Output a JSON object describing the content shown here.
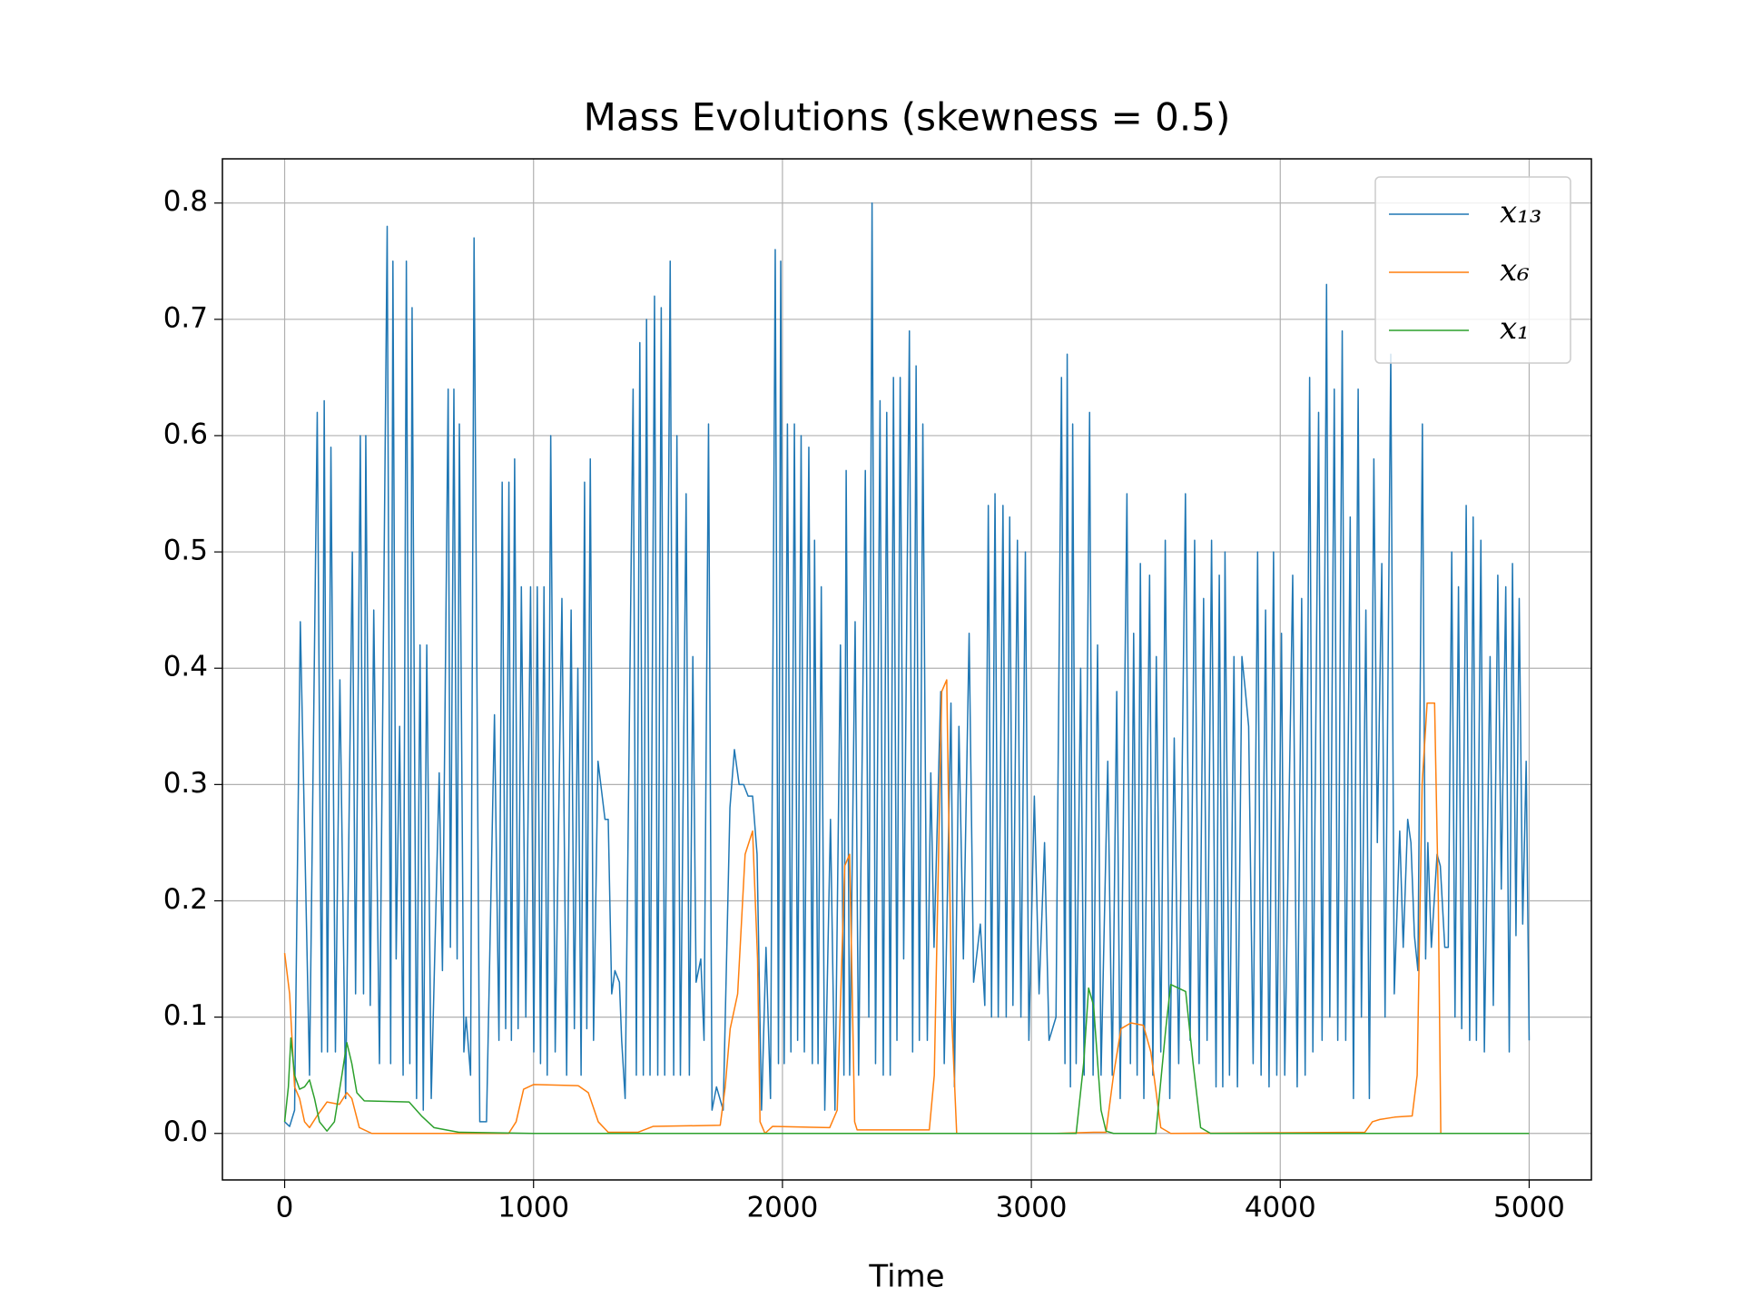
{
  "chart_data": {
    "type": "line",
    "title": "Mass Evolutions (skewness = 0.5)",
    "x_label": "Time",
    "xlim": [
      -250,
      5250
    ],
    "ylim": [
      -0.04,
      0.838
    ],
    "xticks": [
      0,
      1000,
      2000,
      3000,
      4000,
      5000
    ],
    "yticks": [
      {
        "value": 0,
        "label": "0.0"
      },
      0.1,
      0.2,
      0.3,
      0.4,
      0.5,
      0.6,
      0.7,
      0.8
    ],
    "grid": true,
    "legend": "upper right",
    "series": [
      {
        "name": "x₁₃",
        "color": "#1f77b4",
        "x": [
          0,
          20,
          40,
          63,
          100,
          131,
          149,
          159,
          172,
          186,
          204,
          222,
          245,
          272,
          285,
          304,
          317,
          326,
          344,
          358,
          381,
          412,
          426,
          435,
          448,
          462,
          476,
          489,
          503,
          512,
          530,
          544,
          557,
          571,
          589,
          621,
          634,
          657,
          666,
          680,
          693,
          702,
          720,
          729,
          747,
          761,
          784,
          811,
          843,
          861,
          874,
          888,
          901,
          911,
          924,
          938,
          951,
          969,
          988,
          1001,
          1015,
          1028,
          1042,
          1055,
          1069,
          1087,
          1114,
          1133,
          1151,
          1164,
          1178,
          1191,
          1205,
          1214,
          1228,
          1241,
          1259,
          1287,
          1300,
          1314,
          1327,
          1345,
          1354,
          1368,
          1400,
          1413,
          1427,
          1441,
          1454,
          1468,
          1486,
          1499,
          1513,
          1527,
          1549,
          1563,
          1576,
          1590,
          1613,
          1626,
          1640,
          1653,
          1672,
          1685,
          1703,
          1717,
          1735,
          1762,
          1789,
          1807,
          1826,
          1844,
          1862,
          1880,
          1898,
          1916,
          1934,
          1952,
          1971,
          1984,
          1993,
          2007,
          2020,
          2034,
          2048,
          2061,
          2075,
          2088,
          2106,
          2120,
          2129,
          2143,
          2156,
          2170,
          2193,
          2211,
          2233,
          2247,
          2256,
          2270,
          2292,
          2306,
          2333,
          2347,
          2360,
          2374,
          2392,
          2405,
          2419,
          2433,
          2446,
          2460,
          2473,
          2487,
          2510,
          2523,
          2537,
          2550,
          2564,
          2582,
          2596,
          2609,
          2636,
          2650,
          2677,
          2691,
          2709,
          2727,
          2750,
          2768,
          2795,
          2813,
          2827,
          2840,
          2854,
          2867,
          2886,
          2899,
          2913,
          2926,
          2944,
          2958,
          2976,
          2990,
          3012,
          3031,
          3053,
          3071,
          3099,
          3121,
          3135,
          3144,
          3157,
          3166,
          3180,
          3198,
          3212,
          3234,
          3248,
          3266,
          3280,
          3307,
          3325,
          3343,
          3357,
          3384,
          3398,
          3411,
          3425,
          3438,
          3452,
          3475,
          3488,
          3502,
          3520,
          3538,
          3556,
          3574,
          3592,
          3619,
          3638,
          3656,
          3674,
          3692,
          3706,
          3724,
          3742,
          3755,
          3769,
          3778,
          3796,
          3814,
          3828,
          3846,
          3860,
          3873,
          3891,
          3909,
          3923,
          3941,
          3955,
          3973,
          3986,
          4005,
          4018,
          4050,
          4068,
          4086,
          4100,
          4118,
          4131,
          4154,
          4168,
          4186,
          4199,
          4217,
          4231,
          4249,
          4263,
          4281,
          4294,
          4313,
          4326,
          4344,
          4358,
          4376,
          4390,
          4408,
          4421,
          4444,
          4458,
          4480,
          4494,
          4512,
          4525,
          4539,
          4553,
          4571,
          4584,
          4593,
          4607,
          4630,
          4643,
          4661,
          4675,
          4689,
          4702,
          4716,
          4729,
          4747,
          4761,
          4775,
          4788,
          4806,
          4820,
          4843,
          4856,
          4874,
          4888,
          4906,
          4920,
          4933,
          4947,
          4960,
          4974,
          4988,
          5000
        ],
        "values": [
          0.01,
          0.006,
          0.02,
          0.44,
          0.05,
          0.62,
          0.07,
          0.63,
          0.07,
          0.59,
          0.07,
          0.39,
          0.03,
          0.5,
          0.12,
          0.6,
          0.12,
          0.6,
          0.11,
          0.45,
          0.06,
          0.78,
          0.06,
          0.75,
          0.15,
          0.35,
          0.05,
          0.75,
          0.06,
          0.71,
          0.03,
          0.42,
          0.02,
          0.42,
          0.03,
          0.31,
          0.14,
          0.64,
          0.16,
          0.64,
          0.15,
          0.61,
          0.07,
          0.1,
          0.05,
          0.77,
          0.01,
          0.01,
          0.36,
          0.08,
          0.56,
          0.09,
          0.56,
          0.08,
          0.58,
          0.09,
          0.47,
          0.1,
          0.47,
          0.07,
          0.47,
          0.06,
          0.47,
          0.05,
          0.6,
          0.07,
          0.46,
          0.05,
          0.45,
          0.09,
          0.4,
          0.05,
          0.56,
          0.09,
          0.58,
          0.08,
          0.32,
          0.27,
          0.27,
          0.12,
          0.14,
          0.13,
          0.08,
          0.03,
          0.64,
          0.05,
          0.68,
          0.05,
          0.7,
          0.05,
          0.72,
          0.05,
          0.71,
          0.05,
          0.75,
          0.05,
          0.6,
          0.05,
          0.55,
          0.05,
          0.41,
          0.13,
          0.15,
          0.08,
          0.61,
          0.02,
          0.04,
          0.02,
          0.28,
          0.33,
          0.3,
          0.3,
          0.29,
          0.29,
          0.24,
          0.02,
          0.16,
          0.03,
          0.76,
          0.06,
          0.75,
          0.06,
          0.61,
          0.07,
          0.61,
          0.08,
          0.6,
          0.07,
          0.59,
          0.06,
          0.51,
          0.06,
          0.47,
          0.02,
          0.27,
          0.02,
          0.42,
          0.05,
          0.57,
          0.05,
          0.44,
          0.05,
          0.57,
          0.1,
          0.8,
          0.06,
          0.63,
          0.05,
          0.62,
          0.05,
          0.65,
          0.08,
          0.65,
          0.15,
          0.69,
          0.07,
          0.66,
          0.08,
          0.61,
          0.08,
          0.31,
          0.16,
          0.38,
          0.06,
          0.37,
          0.04,
          0.35,
          0.15,
          0.43,
          0.13,
          0.18,
          0.11,
          0.54,
          0.1,
          0.55,
          0.1,
          0.54,
          0.1,
          0.53,
          0.11,
          0.51,
          0.1,
          0.5,
          0.08,
          0.29,
          0.12,
          0.25,
          0.08,
          0.1,
          0.65,
          0.06,
          0.67,
          0.04,
          0.61,
          0.06,
          0.4,
          0.05,
          0.62,
          0.05,
          0.42,
          0.05,
          0.32,
          0.05,
          0.38,
          0.03,
          0.55,
          0.06,
          0.43,
          0.05,
          0.49,
          0.03,
          0.48,
          0.05,
          0.41,
          0.07,
          0.51,
          0.03,
          0.34,
          0.06,
          0.55,
          0.08,
          0.51,
          0.06,
          0.46,
          0.08,
          0.51,
          0.04,
          0.48,
          0.04,
          0.5,
          0.05,
          0.41,
          0.04,
          0.41,
          0.38,
          0.35,
          0.06,
          0.5,
          0.05,
          0.45,
          0.04,
          0.5,
          0.05,
          0.43,
          0.05,
          0.48,
          0.04,
          0.46,
          0.05,
          0.65,
          0.07,
          0.62,
          0.08,
          0.73,
          0.1,
          0.64,
          0.08,
          0.69,
          0.08,
          0.53,
          0.03,
          0.64,
          0.1,
          0.45,
          0.03,
          0.58,
          0.25,
          0.49,
          0.1,
          0.67,
          0.12,
          0.26,
          0.16,
          0.27,
          0.25,
          0.17,
          0.14,
          0.61,
          0.15,
          0.25,
          0.16,
          0.24,
          0.23,
          0.16,
          0.16,
          0.5,
          0.1,
          0.47,
          0.09,
          0.54,
          0.08,
          0.53,
          0.08,
          0.51,
          0.07,
          0.41,
          0.11,
          0.48,
          0.21,
          0.47,
          0.07,
          0.49,
          0.17,
          0.46,
          0.18,
          0.32,
          0.08
        ]
      },
      {
        "name": "x₆",
        "color": "#ff7f0e",
        "x": [
          0,
          20,
          40,
          60,
          80,
          100,
          130,
          170,
          220,
          250,
          270,
          300,
          350,
          900,
          930,
          960,
          1000,
          1180,
          1220,
          1260,
          1300,
          1420,
          1480,
          1750,
          1770,
          1790,
          1820,
          1850,
          1880,
          1900,
          1910,
          1930,
          1960,
          2190,
          2220,
          2250,
          2270,
          2290,
          2300,
          2590,
          2610,
          2640,
          2660,
          2680,
          2700,
          3100,
          3250,
          3300,
          3330,
          3360,
          3400,
          3450,
          3480,
          3520,
          3560,
          4340,
          4370,
          4400,
          4460,
          4530,
          4550,
          4570,
          4590,
          4620,
          4635,
          4645,
          5000
        ],
        "values": [
          0.155,
          0.12,
          0.04,
          0.03,
          0.01,
          0.005,
          0.015,
          0.027,
          0.025,
          0.035,
          0.03,
          0.005,
          0,
          0,
          0.01,
          0.038,
          0.042,
          0.041,
          0.035,
          0.01,
          0.001,
          0.001,
          0.006,
          0.007,
          0.04,
          0.09,
          0.12,
          0.24,
          0.26,
          0.15,
          0.01,
          0,
          0.006,
          0.005,
          0.02,
          0.23,
          0.24,
          0.01,
          0.003,
          0.003,
          0.05,
          0.38,
          0.39,
          0.1,
          0,
          0,
          0.001,
          0.001,
          0.05,
          0.09,
          0.095,
          0.093,
          0.07,
          0.005,
          0,
          0.001,
          0.01,
          0.012,
          0.014,
          0.015,
          0.05,
          0.3,
          0.37,
          0.37,
          0.2,
          0,
          0
        ]
      },
      {
        "name": "x₁",
        "color": "#2ca02c",
        "x": [
          0,
          15,
          25,
          40,
          60,
          80,
          100,
          120,
          140,
          170,
          200,
          230,
          250,
          270,
          290,
          320,
          500,
          550,
          600,
          700,
          1000,
          3180,
          3210,
          3230,
          3250,
          3280,
          3300,
          3330,
          3500,
          3540,
          3560,
          3620,
          3650,
          3680,
          3720,
          5000
        ],
        "values": [
          0.01,
          0.04,
          0.082,
          0.05,
          0.038,
          0.04,
          0.046,
          0.03,
          0.01,
          0.002,
          0.01,
          0.05,
          0.078,
          0.06,
          0.035,
          0.028,
          0.027,
          0.015,
          0.005,
          0.001,
          0,
          0,
          0.06,
          0.125,
          0.11,
          0.02,
          0.002,
          0,
          0,
          0.09,
          0.128,
          0.122,
          0.06,
          0.005,
          0,
          0
        ]
      }
    ]
  }
}
